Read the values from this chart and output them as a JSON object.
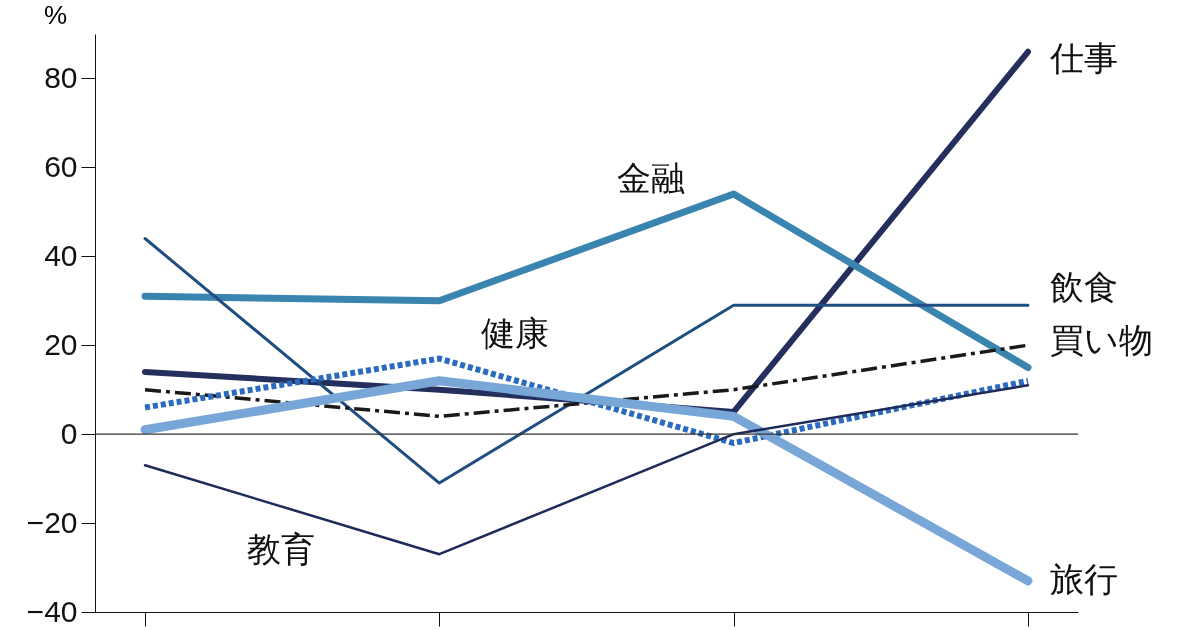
{
  "chart_data": {
    "type": "line",
    "ylabel": "%",
    "categories": [
      null,
      null,
      null,
      null
    ],
    "ylim": [
      -40,
      90
    ],
    "yticks": [
      -40,
      -20,
      0,
      20,
      40,
      60,
      80
    ],
    "grid": false,
    "marker": "none",
    "ref_lines": [
      {
        "axis": "y",
        "value": 0
      }
    ],
    "series": [
      {
        "name": "仕事",
        "color": "#252f5e",
        "values": [
          14,
          10,
          5,
          86
        ]
      },
      {
        "name": "金融",
        "color": "#3a84b0",
        "values": [
          31,
          30,
          54,
          15
        ]
      },
      {
        "name": "飲食",
        "color": "#1f4e80",
        "values": [
          44,
          -11,
          29,
          29
        ]
      },
      {
        "name": "買い物",
        "color": "#1a1a1a",
        "values": [
          10,
          4,
          10,
          20
        ],
        "line_style": "dashed"
      },
      {
        "name": "健康",
        "color": "#2a6bbf",
        "values": [
          6,
          17,
          -2,
          12
        ],
        "line_style": "dotted"
      },
      {
        "name": "旅行",
        "color": "#78a6d6",
        "values": [
          1,
          12,
          4,
          -33
        ]
      },
      {
        "name": "教育",
        "color": "#1e2a5a",
        "values": [
          -7,
          -27,
          0,
          11
        ]
      }
    ]
  }
}
